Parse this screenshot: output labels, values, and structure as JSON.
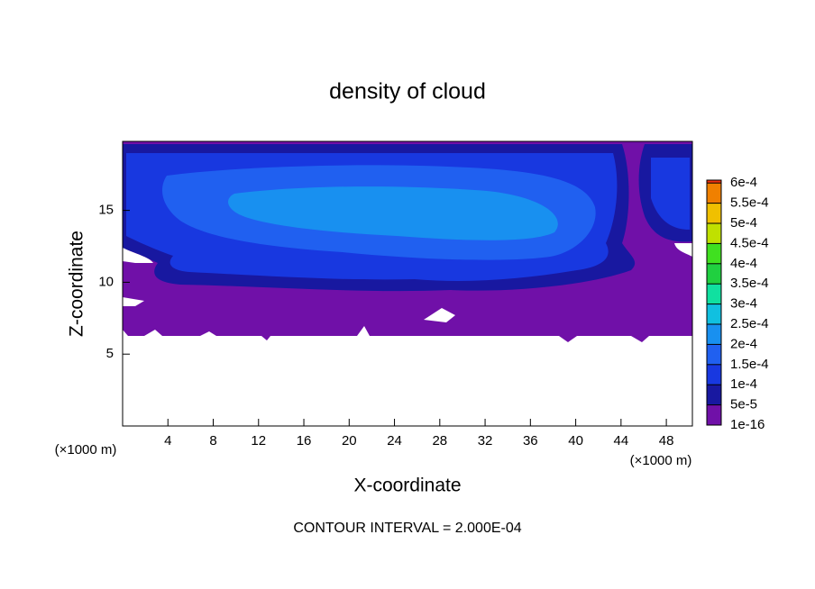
{
  "chart_data": {
    "type": "contour",
    "title": "density of cloud",
    "xlabel": "X-coordinate",
    "ylabel": "Z-coordinate",
    "xunit": "(×1000 m)",
    "yunit": "(×1000 m)",
    "footnote": "CONTOUR INTERVAL = 2.000E-04",
    "xlim": [
      0,
      50.3
    ],
    "xticks": [
      4,
      8,
      12,
      16,
      20,
      24,
      28,
      32,
      36,
      40,
      44,
      48
    ],
    "ylim": [
      0,
      19.8
    ],
    "yticks": [
      5,
      10,
      15
    ],
    "colorbar_ticks": [
      {
        "value": 1e-16,
        "label": "1e-16"
      },
      {
        "value": 5e-05,
        "label": "5e-5"
      },
      {
        "value": 0.0001,
        "label": "1e-4"
      },
      {
        "value": 0.00015,
        "label": "1.5e-4"
      },
      {
        "value": 0.0002,
        "label": "2e-4"
      },
      {
        "value": 0.00025,
        "label": "2.5e-4"
      },
      {
        "value": 0.0003,
        "label": "3e-4"
      },
      {
        "value": 0.00035,
        "label": "3.5e-4"
      },
      {
        "value": 0.0004,
        "label": "4e-4"
      },
      {
        "value": 0.00045,
        "label": "4.5e-4"
      },
      {
        "value": 0.0005,
        "label": "5e-4"
      },
      {
        "value": 0.00055,
        "label": "5.5e-4"
      },
      {
        "value": 0.0006,
        "label": "6e-4"
      }
    ],
    "colors": [
      "#7010a8",
      "#1818a0",
      "#1838e0",
      "#2060f0",
      "#1890f0",
      "#10c0e0",
      "#10e0a0",
      "#20d040",
      "#40e020",
      "#c0e000",
      "#f0c000",
      "#f08000",
      "#f03010",
      "#f08080"
    ]
  }
}
